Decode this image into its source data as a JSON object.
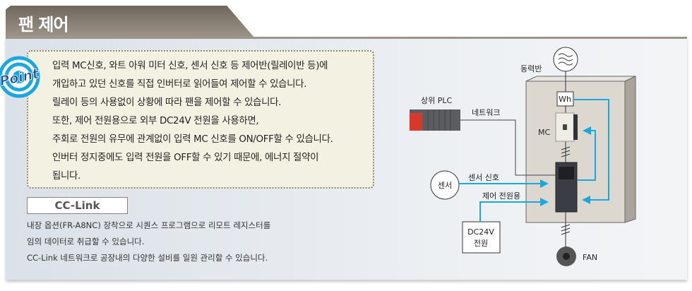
{
  "title": "팬 제어",
  "point": {
    "badge": "Point",
    "lines": [
      "입력 MC신호, 와트 아워 미터 신호, 센서 신호 등 제어반(릴레이반 등)에",
      "개입하고 있던 신호를 직접 인버터로 읽어들여 제어할 수 있습니다.",
      "릴레이 등의 사용없이 상황에 따라 팬을 제어할 수 있습니다.",
      "또한, 제어 전원용으로 외부 DC24V 전원을 사용하면,",
      "주회로 전원의 유무에 관계없이 입력 MC 신호를 ON/OFF할 수 있습니다.",
      "인버터 정지중에도 입력 전원을 OFF할 수 있기 때문에, 에너지 절약이",
      "됩니다."
    ]
  },
  "cclink": {
    "label": "CC-Link",
    "lines": [
      "내장 옵션(FR-A8NC)  장착으로 시퀀스 프로그램으로 리모트 레지스터를",
      "임의 데이터로 취급할 수 있습니다.",
      "CC-Link 네트워크로 공장내의 다양한 설비를 일원 관리할 수 있습니다."
    ]
  },
  "diagram": {
    "power_panel": "동력반",
    "plc": "상위 PLC",
    "network": "네트워크",
    "sensor": "센서",
    "sensor_signal": "센서 신호",
    "control_power": "제어 전원용",
    "dc_line1": "DC24V",
    "dc_line2": "전원",
    "wh": "Wh",
    "mc": "MC",
    "fan": "FAN"
  },
  "colors": {
    "signal": "#1aa8e0",
    "plc_red": "#d8392b",
    "cabinet": "#dcd8d0"
  }
}
